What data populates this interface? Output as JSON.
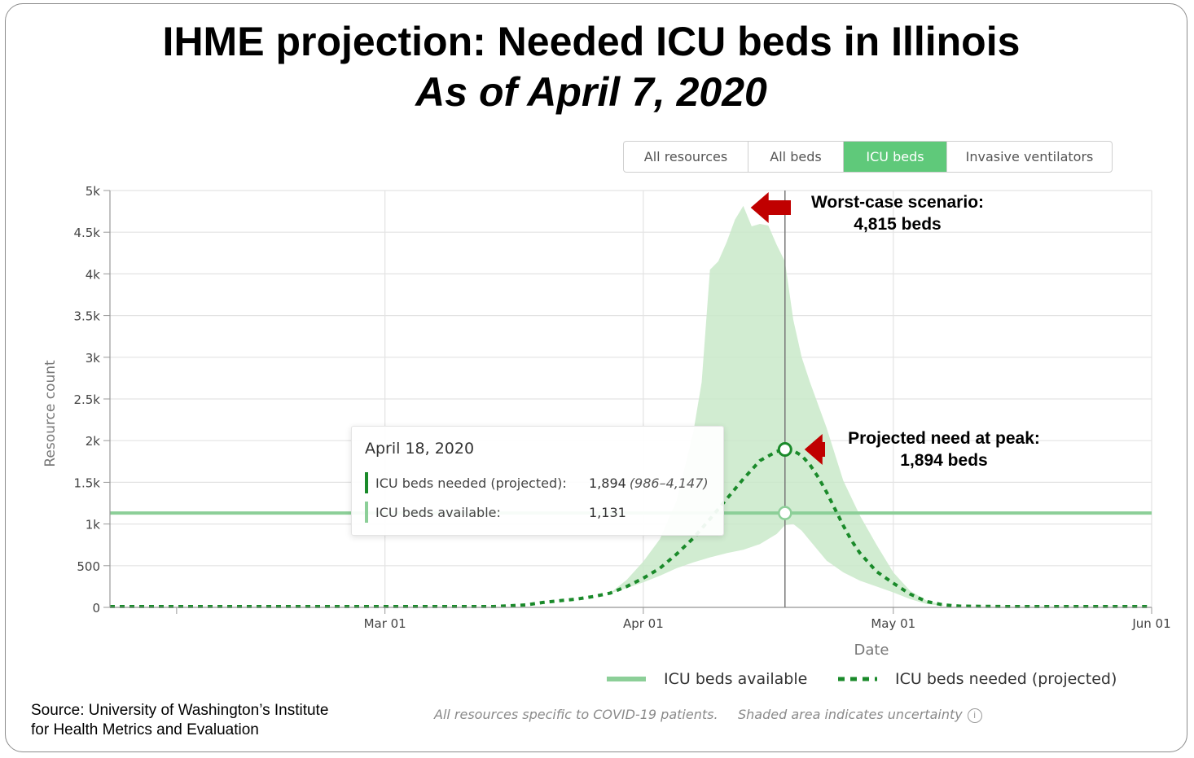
{
  "title": {
    "line1": "IHME projection: Needed ICU beds in Illinois",
    "line2": "As of April 7, 2020"
  },
  "tabs": [
    {
      "label": "All resources",
      "active": false
    },
    {
      "label": "All beds",
      "active": false
    },
    {
      "label": "ICU beds",
      "active": true
    },
    {
      "label": "Invasive ventilators",
      "active": false
    }
  ],
  "tooltip": {
    "date": "April 18, 2020",
    "needed_label": "ICU beds needed (projected):",
    "needed_value": "1,894",
    "needed_range": "(986–4,147)",
    "available_label": "ICU beds available:",
    "available_value": "1,131"
  },
  "annotations": {
    "worst_case_line1": "Worst-case scenario:",
    "worst_case_line2": "4,815 beds",
    "peak_line1": "Projected need at peak:",
    "peak_line2": "1,894 beds"
  },
  "legend": {
    "available": "ICU beds available",
    "needed": "ICU beds needed (projected)"
  },
  "footnotes": {
    "covid_note": "All resources specific to COVID-19 patients.",
    "uncertainty_note": "Shaded area indicates uncertainty",
    "info_glyph": "i"
  },
  "source": {
    "line1": "Source: University of Washington’s Institute",
    "line2": "for Health Metrics and Evaluation"
  },
  "colors": {
    "accent": "#5fc97a",
    "available_line": "#8ccf98",
    "needed_line": "#1a8a2a",
    "band": "#c9e9c9",
    "arrow": "#c00000",
    "tooltip_needed_bar": "#1a8a2a",
    "tooltip_available_bar": "#8ccf98"
  },
  "chart_data": {
    "type": "area",
    "ylabel": "Resource count",
    "xlabel": "Date",
    "ylim": [
      0,
      5000
    ],
    "yticks": [
      0,
      500,
      1000,
      1500,
      2000,
      2500,
      3000,
      3500,
      4000,
      4500,
      5000
    ],
    "ytick_labels": [
      "0",
      "500",
      "1k",
      "1.5k",
      "2k",
      "2.5k",
      "3k",
      "3.5k",
      "4k",
      "4.5k",
      "5k"
    ],
    "x_domain_days": [
      -8,
      117
    ],
    "xticks": [
      {
        "day": 0,
        "label": ""
      },
      {
        "day": 25,
        "label": "Mar 01"
      },
      {
        "day": 56,
        "label": "Apr 01"
      },
      {
        "day": 86,
        "label": "May 01"
      },
      {
        "day": 117,
        "label": "Jun 01"
      }
    ],
    "x_unit_note": "days since Feb 5, 2020",
    "available_beds": 1131,
    "hover_day": 73,
    "hover_needed": 1894,
    "hover_available": 1131,
    "series": [
      {
        "name": "ICU beds needed (projected)",
        "style": "dashed",
        "points": [
          [
            -8,
            10
          ],
          [
            25,
            10
          ],
          [
            38,
            10
          ],
          [
            40,
            20
          ],
          [
            42,
            30
          ],
          [
            44,
            60
          ],
          [
            46,
            80
          ],
          [
            48,
            100
          ],
          [
            50,
            130
          ],
          [
            52,
            170
          ],
          [
            54,
            250
          ],
          [
            56,
            350
          ],
          [
            58,
            470
          ],
          [
            60,
            640
          ],
          [
            62,
            830
          ],
          [
            64,
            1060
          ],
          [
            66,
            1300
          ],
          [
            68,
            1540
          ],
          [
            70,
            1760
          ],
          [
            72,
            1870
          ],
          [
            73,
            1894
          ],
          [
            74,
            1880
          ],
          [
            75,
            1820
          ],
          [
            76,
            1710
          ],
          [
            77,
            1560
          ],
          [
            78,
            1380
          ],
          [
            79,
            1180
          ],
          [
            80,
            980
          ],
          [
            81,
            800
          ],
          [
            82,
            650
          ],
          [
            84,
            430
          ],
          [
            86,
            290
          ],
          [
            88,
            160
          ],
          [
            90,
            70
          ],
          [
            92,
            30
          ],
          [
            94,
            15
          ],
          [
            100,
            10
          ],
          [
            117,
            10
          ]
        ]
      },
      {
        "name": "Uncertainty upper",
        "style": "band",
        "points": [
          [
            52,
            170
          ],
          [
            54,
            330
          ],
          [
            56,
            550
          ],
          [
            58,
            820
          ],
          [
            60,
            1280
          ],
          [
            62,
            2100
          ],
          [
            63,
            2700
          ],
          [
            64,
            4050
          ],
          [
            65,
            4150
          ],
          [
            66,
            4380
          ],
          [
            67,
            4650
          ],
          [
            68,
            4815
          ],
          [
            69,
            4570
          ],
          [
            70,
            4600
          ],
          [
            71,
            4580
          ],
          [
            72,
            4350
          ],
          [
            73,
            4147
          ],
          [
            74,
            3450
          ],
          [
            75,
            3000
          ],
          [
            76,
            2700
          ],
          [
            78,
            2150
          ],
          [
            80,
            1520
          ],
          [
            82,
            1100
          ],
          [
            84,
            750
          ],
          [
            86,
            420
          ],
          [
            88,
            200
          ],
          [
            90,
            80
          ],
          [
            92,
            30
          ]
        ]
      },
      {
        "name": "Uncertainty lower",
        "style": "band",
        "points": [
          [
            52,
            170
          ],
          [
            54,
            230
          ],
          [
            56,
            300
          ],
          [
            58,
            380
          ],
          [
            60,
            470
          ],
          [
            62,
            540
          ],
          [
            64,
            600
          ],
          [
            66,
            650
          ],
          [
            68,
            690
          ],
          [
            70,
            760
          ],
          [
            72,
            880
          ],
          [
            73,
            986
          ],
          [
            74,
            1000
          ],
          [
            75,
            920
          ],
          [
            76,
            800
          ],
          [
            78,
            560
          ],
          [
            80,
            420
          ],
          [
            82,
            320
          ],
          [
            84,
            250
          ],
          [
            86,
            180
          ],
          [
            88,
            100
          ],
          [
            90,
            40
          ],
          [
            92,
            20
          ]
        ]
      }
    ]
  }
}
